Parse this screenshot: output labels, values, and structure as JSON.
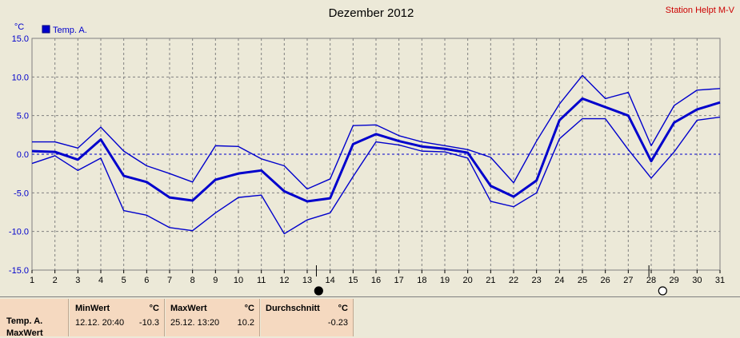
{
  "chart_data": {
    "type": "line",
    "title": "Dezember 2012",
    "station_label": "Station Helpt M-V",
    "ylabel": "°C",
    "legend": [
      "Temp. A."
    ],
    "legend_color": "#0000cc",
    "ylim": [
      -15,
      15
    ],
    "yticks": [
      "15.0",
      "10.0",
      "5.0",
      "0.0",
      "-5.0",
      "-10.0",
      "-15.0"
    ],
    "yticks_values": [
      15,
      10,
      5,
      0,
      -5,
      -10,
      -15
    ],
    "x": [
      1,
      2,
      3,
      4,
      5,
      6,
      7,
      8,
      9,
      10,
      11,
      12,
      13,
      14,
      15,
      16,
      17,
      18,
      19,
      20,
      21,
      22,
      23,
      24,
      25,
      26,
      27,
      28,
      29,
      30,
      31
    ],
    "xtick_labels": [
      "1",
      "2",
      "3",
      "4",
      "5",
      "6",
      "7",
      "8",
      "9",
      "10",
      "11",
      "12",
      "13",
      "14",
      "15",
      "16",
      "17",
      "18",
      "19",
      "20",
      "21",
      "22",
      "23",
      "24",
      "25",
      "26",
      "27",
      "28",
      "29",
      "30",
      "31"
    ],
    "grid": true,
    "line_color": "#0000cc",
    "series": [
      {
        "role": "max",
        "values": [
          1.6,
          1.6,
          0.8,
          3.5,
          0.4,
          -1.5,
          -2.5,
          -3.6,
          1.1,
          1.0,
          -0.6,
          -1.5,
          -4.5,
          -3.2,
          3.7,
          3.8,
          2.4,
          1.6,
          1.1,
          0.6,
          -0.4,
          -3.7,
          1.7,
          6.5,
          10.2,
          7.2,
          8.0,
          1.1,
          6.3,
          8.3,
          8.5
        ]
      },
      {
        "role": "avg",
        "values": [
          0.4,
          0.3,
          -0.7,
          1.9,
          -2.8,
          -3.6,
          -5.6,
          -6.0,
          -3.3,
          -2.5,
          -2.1,
          -4.8,
          -6.1,
          -5.7,
          1.3,
          2.6,
          1.7,
          1.0,
          0.7,
          0.2,
          -4.1,
          -5.5,
          -3.4,
          4.4,
          7.2,
          6.1,
          5.0,
          -0.9,
          4.1,
          5.8,
          6.7
        ]
      },
      {
        "role": "min",
        "values": [
          -1.2,
          -0.2,
          -2.1,
          -0.5,
          -7.3,
          -7.9,
          -9.5,
          -9.9,
          -7.6,
          -5.6,
          -5.3,
          -10.3,
          -8.5,
          -7.6,
          -2.9,
          1.6,
          1.2,
          0.4,
          0.3,
          -0.5,
          -6.1,
          -6.8,
          -5.0,
          2.0,
          4.6,
          4.6,
          0.6,
          -3.1,
          0.3,
          4.4,
          4.8
        ]
      }
    ],
    "markers": [
      {
        "day": 13,
        "type": "min",
        "style": "filled"
      },
      {
        "day": 28,
        "type": "max",
        "style": "open"
      }
    ]
  },
  "stats": {
    "row_label_1": "Temp. A.",
    "row_label_2": "MaxWert",
    "min_header": "MinWert",
    "min_unit": "°C",
    "min_time": "12.12.  20:40",
    "min_value": "-10.3",
    "max_header": "MaxWert",
    "max_unit": "°C",
    "max_time": "25.12.  13:20",
    "max_value": "10.2",
    "avg_header": "Durchschnitt",
    "avg_unit": "°C",
    "avg_value": "-0.23"
  }
}
